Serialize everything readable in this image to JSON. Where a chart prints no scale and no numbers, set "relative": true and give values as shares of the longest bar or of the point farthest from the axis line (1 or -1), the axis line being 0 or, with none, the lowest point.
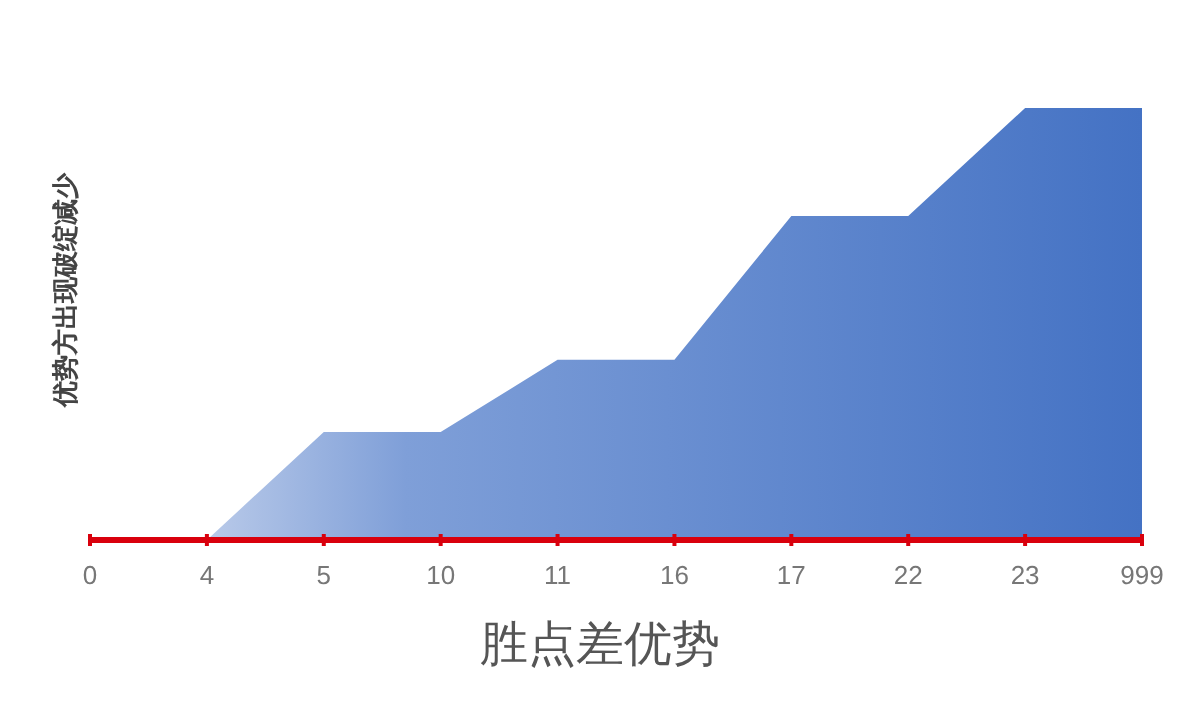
{
  "chart_data": {
    "type": "area",
    "relative": true,
    "xlabel": "胜点差优势",
    "ylabel": "优势方出现破绽减少",
    "categories": [
      "0",
      "4",
      "5",
      "10",
      "11",
      "16",
      "17",
      "22",
      "23",
      "999"
    ],
    "values": [
      0,
      0,
      0.25,
      0.25,
      0.417,
      0.417,
      0.75,
      0.75,
      1,
      1
    ],
    "color": "#4472c4"
  }
}
